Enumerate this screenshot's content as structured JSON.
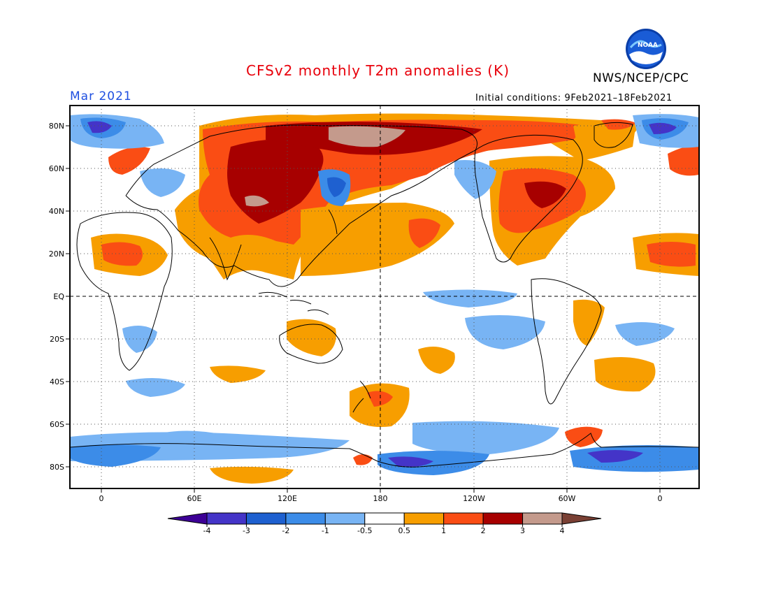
{
  "title": "CFSv2 monthly T2m anomalies (K)",
  "organization": "NWS/NCEP/CPC",
  "logo_text": "NOAA",
  "valid_month": "Mar 2021",
  "initial_conditions": "Initial conditions: 9Feb2021–18Feb2021",
  "map": {
    "projection": "equirectangular",
    "lat_labels": [
      "80N",
      "60N",
      "40N",
      "20N",
      "EQ",
      "20S",
      "40S",
      "60S",
      "80S"
    ],
    "lon_labels": [
      "0",
      "60E",
      "120E",
      "180",
      "120W",
      "60W",
      "0"
    ],
    "grid": "dotted",
    "dashed_lines": [
      "EQ",
      "180"
    ]
  },
  "colorbar": {
    "tick_labels": [
      "-4",
      "-3",
      "-2",
      "-1",
      "-0.5",
      "0.5",
      "1",
      "2",
      "3",
      "4"
    ],
    "colors": [
      "#3d0096",
      "#4434c8",
      "#1e60d0",
      "#3c8ce8",
      "#78b4f4",
      "#ffffff",
      "#f79e00",
      "#fa4d14",
      "#a70000",
      "#c49a8c",
      "#7a4034"
    ]
  },
  "anomaly_colors": {
    "cold_extreme": "#3d0096",
    "cold_strong": "#4434c8",
    "cold_moderate": "#1e60d0",
    "cold_weak": "#3c8ce8",
    "cold_slight": "#78b4f4",
    "neutral": "#ffffff",
    "warm_slight": "#f79e00",
    "warm_weak": "#fa4d14",
    "warm_moderate": "#a70000",
    "warm_strong": "#c49a8c",
    "warm_extreme": "#7a4034"
  }
}
